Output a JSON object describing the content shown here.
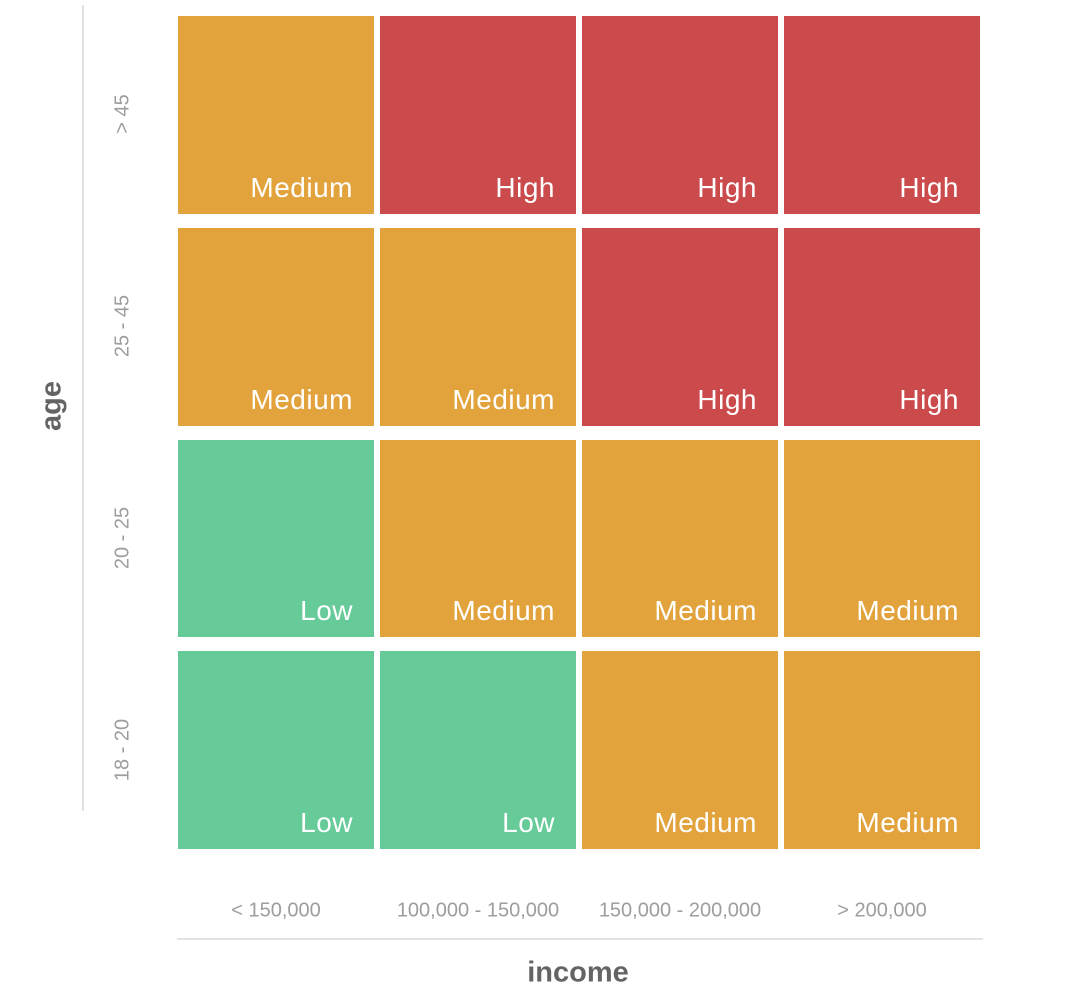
{
  "chart_data": {
    "type": "heatmap",
    "title": "",
    "xlabel": "income",
    "ylabel": "age",
    "x_categories": [
      "< 150,000",
      "100,000 - 150,000",
      "150,000 - 200,000",
      "> 200,000"
    ],
    "y_categories": [
      "> 45",
      "25 - 45",
      "20 - 25",
      "18 - 20"
    ],
    "rows": [
      [
        "Medium",
        "High",
        "High",
        "High"
      ],
      [
        "Medium",
        "Medium",
        "High",
        "High"
      ],
      [
        "Low",
        "Medium",
        "Medium",
        "Medium"
      ],
      [
        "Low",
        "Low",
        "Medium",
        "Medium"
      ]
    ],
    "value_colors": {
      "Low": "#66CB99",
      "Medium": "#E2A33C",
      "High": "#CB4B4C"
    },
    "cell_label_color": "#FFFFFF",
    "axis_line_color": "#E2E2E2",
    "tick_label_color": "#9D9D9D",
    "axis_title_color": "#646464",
    "background_color": "#FFFFFF",
    "legend": "none",
    "grid_lines": "off"
  }
}
